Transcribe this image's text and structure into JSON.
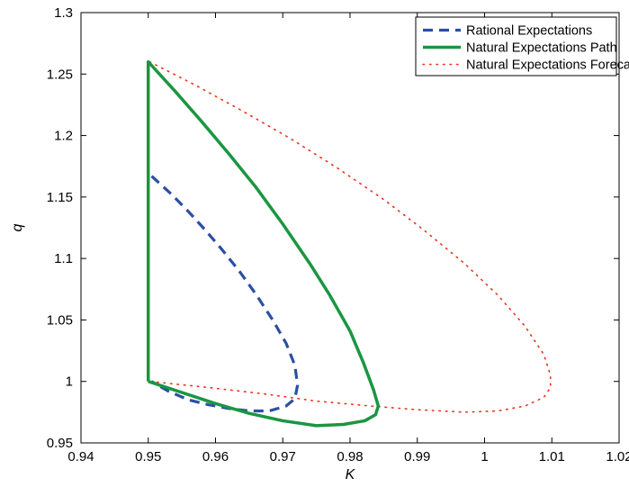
{
  "chart_data": {
    "type": "line",
    "title": "",
    "xlabel": "K",
    "ylabel": "q",
    "xlim": [
      0.94,
      1.02
    ],
    "ylim": [
      0.95,
      1.3
    ],
    "xticks": [
      0.94,
      0.95,
      0.96,
      0.97,
      0.98,
      0.99,
      1,
      1.01,
      1.02
    ],
    "xtick_labels": [
      "0.94",
      "0.95",
      "0.96",
      "0.97",
      "0.98",
      "0.99",
      "1",
      "1.01",
      "1.02"
    ],
    "yticks": [
      0.95,
      1,
      1.05,
      1.1,
      1.15,
      1.2,
      1.25,
      1.3
    ],
    "ytick_labels": [
      "0.95",
      "1",
      "1.05",
      "1.1",
      "1.15",
      "1.2",
      "1.25",
      "1.3"
    ],
    "grid": false,
    "legend_position": "top-right",
    "series": [
      {
        "name": "Rational Expectations",
        "color": "#2b4fa3",
        "style": "dashed",
        "x": [
          0.9505,
          0.9535,
          0.956,
          0.9585,
          0.961,
          0.9635,
          0.966,
          0.9685,
          0.9705,
          0.9718,
          0.9722,
          0.9718,
          0.9705,
          0.968,
          0.965,
          0.962,
          0.959,
          0.956,
          0.953,
          0.9505
        ],
        "y": [
          1.167,
          1.152,
          1.138,
          1.123,
          1.107,
          1.09,
          1.071,
          1.05,
          1.031,
          1.013,
          0.997,
          0.986,
          0.98,
          0.976,
          0.976,
          0.978,
          0.981,
          0.985,
          0.992,
          1.0
        ]
      },
      {
        "name": "Natural Expectations Path",
        "color": "#1a9641",
        "style": "solid",
        "x": [
          0.95,
          0.95,
          0.954,
          0.958,
          0.962,
          0.966,
          0.97,
          0.974,
          0.977,
          0.98,
          0.982,
          0.9835,
          0.9842,
          0.9838,
          0.9822,
          0.979,
          0.975,
          0.97,
          0.965,
          0.96,
          0.955,
          0.95
        ],
        "y": [
          1.0,
          1.26,
          1.236,
          1.211,
          1.185,
          1.158,
          1.128,
          1.096,
          1.07,
          1.041,
          1.015,
          0.993,
          0.98,
          0.973,
          0.968,
          0.965,
          0.964,
          0.968,
          0.974,
          0.982,
          0.991,
          1.0
        ]
      },
      {
        "name": "Natural Expectations Forecast",
        "color": "#e8321e",
        "style": "dotted",
        "x": [
          0.9502,
          0.957,
          0.964,
          0.971,
          0.978,
          0.985,
          0.991,
          0.997,
          1.002,
          1.006,
          1.0088,
          1.0098,
          1.0098,
          1.0088,
          1.006,
          1.002,
          0.997,
          0.99,
          0.983,
          0.975,
          0.967,
          0.959,
          0.9502
        ],
        "y": [
          1.26,
          1.241,
          1.22,
          1.198,
          1.174,
          1.148,
          1.123,
          1.096,
          1.07,
          1.045,
          1.022,
          1.005,
          0.995,
          0.987,
          0.98,
          0.976,
          0.975,
          0.977,
          0.98,
          0.984,
          0.99,
          0.995,
          1.0
        ]
      }
    ]
  }
}
